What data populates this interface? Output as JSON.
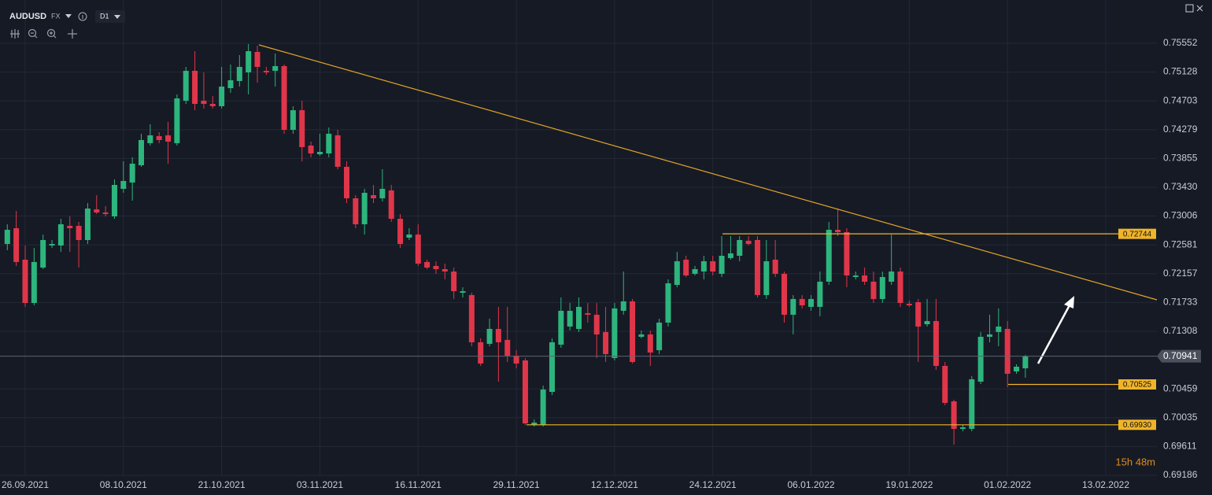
{
  "chart_data": {
    "type": "candlestick",
    "title": "AUDUSD",
    "market": "FX",
    "interval": "D1",
    "timer": "15h 48m",
    "up_color": "#2db57d",
    "down_color": "#e0364a",
    "grid": true,
    "categories": [
      null,
      null,
      "26.09.2021",
      null,
      null,
      null,
      null,
      null,
      null,
      null,
      null,
      null,
      null,
      "08.10.2021",
      null,
      null,
      null,
      null,
      null,
      null,
      null,
      null,
      null,
      null,
      "21.10.2021",
      null,
      null,
      null,
      null,
      null,
      null,
      null,
      null,
      null,
      null,
      "03.11.2021",
      null,
      null,
      null,
      null,
      null,
      null,
      null,
      null,
      null,
      null,
      "16.11.2021",
      null,
      null,
      null,
      null,
      null,
      null,
      null,
      null,
      null,
      null,
      "29.11.2021",
      null,
      null,
      null,
      null,
      null,
      null,
      null,
      null,
      null,
      null,
      "12.12.2021",
      null,
      null,
      null,
      null,
      null,
      null,
      null,
      null,
      null,
      null,
      "24.12.2021",
      null,
      null,
      null,
      null,
      null,
      null,
      null,
      null,
      null,
      null,
      "06.01.2022",
      null,
      null,
      null,
      null,
      null,
      null,
      null,
      null,
      null,
      null,
      "19.01.2022",
      null,
      null,
      null,
      null,
      null,
      null,
      null,
      null,
      null,
      null,
      "01.02.2022",
      null,
      null,
      null,
      null,
      null,
      null,
      null,
      null,
      null,
      null,
      "13.02.2022"
    ],
    "open": [
      0.72595,
      0.72827,
      0.72363,
      0.71725,
      0.72247,
      0.72572,
      0.72572,
      0.72862,
      0.72862,
      0.72653,
      0.73105,
      0.73059,
      0.73001,
      0.73407,
      0.735,
      0.73755,
      0.7408,
      0.74184,
      0.74196,
      0.7408,
      0.74706,
      0.75146,
      0.74706,
      0.74659,
      0.74625,
      0.74891,
      0.74996,
      0.75123,
      0.75425,
      0.75146,
      0.75146,
      0.75216,
      0.74277,
      0.74566,
      0.74045,
      0.73917,
      0.73929,
      0.74196,
      0.73732,
      0.73268,
      0.72885,
      0.73314,
      0.73268,
      0.73384,
      0.72966,
      0.72688,
      0.72734,
      0.72329,
      0.72271,
      0.72224,
      0.72189,
      0.71876,
      0.71842,
      0.71146,
      0.71123,
      0.71343,
      0.71181,
      0.70949,
      0.70879,
      0.69928,
      0.69928,
      0.70415,
      0.71111,
      0.71378,
      0.71343,
      0.71575,
      0.71552,
      0.71297,
      0.70914,
      0.7161,
      0.71749,
      0.71227,
      0.71262,
      0.7103,
      0.71436,
      0.71992,
      0.72363,
      0.72155,
      0.72189,
      0.7234,
      0.72155,
      0.72387,
      0.72421,
      0.72642,
      0.72653,
      0.71842,
      0.72363,
      0.72155,
      0.71552,
      0.71784,
      0.71668,
      0.71668,
      0.72039,
      0.72804,
      0.72769,
      0.72108,
      0.72131,
      0.72039,
      0.71784,
      0.72039,
      0.72189,
      0.71714,
      0.71737,
      0.71412,
      0.71459,
      0.70798,
      0.70276,
      0.6987,
      0.6987,
      0.70566,
      0.71227,
      0.71297,
      0.71343,
      0.70717,
      0.70763,
      null,
      null,
      null,
      null,
      null,
      null,
      null,
      null,
      null
    ],
    "high": [
      0.72885,
      0.73082,
      0.72572,
      0.72537,
      0.72734,
      0.72653,
      0.72966,
      0.73001,
      0.7292,
      0.73198,
      0.73314,
      0.73152,
      0.73546,
      0.73813,
      0.73871,
      0.74219,
      0.74358,
      0.74242,
      0.74393,
      0.74798,
      0.75204,
      0.75436,
      0.75123,
      0.74775,
      0.75204,
      0.75239,
      0.75378,
      0.75541,
      0.75517,
      0.75204,
      0.75401,
      0.75239,
      0.74625,
      0.74706,
      0.74103,
      0.74219,
      0.74311,
      0.74277,
      0.73813,
      0.73314,
      0.73407,
      0.73465,
      0.73697,
      0.73465,
      0.73036,
      0.72827,
      0.72885,
      0.72363,
      0.7234,
      0.72305,
      0.72247,
      0.71957,
      0.71876,
      0.71204,
      0.71494,
      0.71668,
      0.71668,
      0.7103,
      0.70914,
      0.70009,
      0.70508,
      0.71204,
      0.71807,
      0.71725,
      0.71807,
      0.71725,
      0.71725,
      0.71668,
      0.71725,
      0.72189,
      0.71784,
      0.7132,
      0.7132,
      0.71494,
      0.72073,
      0.72479,
      0.72421,
      0.72271,
      0.72421,
      0.72421,
      0.72711,
      0.72711,
      0.72711,
      0.72711,
      0.72711,
      0.72653,
      0.72653,
      0.72189,
      0.71842,
      0.71842,
      0.71842,
      0.72189,
      0.7292,
      0.73117,
      0.72827,
      0.72189,
      0.72247,
      0.72189,
      0.72189,
      0.72734,
      0.72247,
      0.7176,
      0.71784,
      0.71784,
      0.71784,
      0.70856,
      0.70299,
      0.69928,
      0.70647,
      0.71297,
      0.71552,
      0.71645,
      0.71459,
      0.70821,
      0.7096,
      null,
      null,
      null,
      null,
      null,
      null,
      null,
      null,
      null
    ],
    "low": [
      0.72503,
      0.72271,
      0.71668,
      0.71691,
      0.72224,
      0.72537,
      0.72479,
      0.72479,
      0.72247,
      0.72595,
      0.73036,
      0.73001,
      0.72966,
      0.73349,
      0.73233,
      0.73732,
      0.74045,
      0.7408,
      0.73778,
      0.74045,
      0.74659,
      0.74566,
      0.7459,
      0.7459,
      0.7459,
      0.74822,
      0.74914,
      0.74798,
      0.74972,
      0.75088,
      0.74914,
      0.74219,
      0.74219,
      0.73813,
      0.73871,
      0.73894,
      0.73871,
      0.73697,
      0.73198,
      0.72827,
      0.72734,
      0.73198,
      0.73221,
      0.7292,
      0.72537,
      0.72653,
      0.72271,
      0.72224,
      0.72155,
      0.72073,
      0.71784,
      0.71807,
      0.71088,
      0.70798,
      0.71088,
      0.70566,
      0.70856,
      0.70763,
      0.69928,
      0.69905,
      0.69905,
      0.70369,
      0.71065,
      0.7132,
      0.71297,
      0.71436,
      0.70914,
      0.70856,
      0.70879,
      0.71552,
      0.70833,
      0.71204,
      0.70798,
      0.70972,
      0.71378,
      0.71957,
      0.72108,
      0.72131,
      0.72073,
      0.72131,
      0.72108,
      0.72363,
      0.7234,
      0.72572,
      0.71807,
      0.71784,
      0.72108,
      0.71436,
      0.71262,
      0.71645,
      0.7161,
      0.71529,
      0.71992,
      0.72711,
      0.71957,
      0.72073,
      0.71992,
      0.71725,
      0.71725,
      0.71992,
      0.71668,
      0.71668,
      0.70856,
      0.71378,
      0.7074,
      0.70218,
      0.69638,
      0.69835,
      0.69835,
      0.70531,
      0.71146,
      0.71088,
      0.70485,
      0.70682,
      0.70624,
      null,
      null,
      null,
      null,
      null,
      null,
      null,
      null,
      null
    ],
    "close": [
      0.72804,
      0.72329,
      0.71725,
      0.72329,
      0.72653,
      0.72595,
      0.72885,
      0.72827,
      0.72653,
      0.73117,
      0.73059,
      0.73036,
      0.73465,
      0.73523,
      0.73778,
      0.74126,
      0.74196,
      0.74126,
      0.74103,
      0.7474,
      0.75146,
      0.74659,
      0.74659,
      0.74625,
      0.74914,
      0.75007,
      0.75204,
      0.75436,
      0.75204,
      0.75123,
      0.75216,
      0.74277,
      0.74566,
      0.74022,
      0.73929,
      0.73952,
      0.74219,
      0.73732,
      0.73268,
      0.72885,
      0.73349,
      0.73268,
      0.73407,
      0.72966,
      0.72595,
      0.72734,
      0.72305,
      0.72247,
      0.72224,
      0.72189,
      0.71899,
      0.71899,
      0.71146,
      0.70833,
      0.71343,
      0.71146,
      0.70949,
      0.70833,
      0.69951,
      0.69963,
      0.7045,
      0.71146,
      0.7161,
      0.7161,
      0.71668,
      0.71552,
      0.71262,
      0.70972,
      0.71645,
      0.71749,
      0.70856,
      0.71262,
      0.70995,
      0.71436,
      0.72015,
      0.7234,
      0.72131,
      0.72224,
      0.7234,
      0.72189,
      0.72421,
      0.72456,
      0.72653,
      0.72595,
      0.71842,
      0.7234,
      0.72155,
      0.71552,
      0.71784,
      0.71691,
      0.71784,
      0.72039,
      0.72804,
      0.72769,
      0.72131,
      0.72131,
      0.72039,
      0.71784,
      0.72108,
      0.72189,
      0.71725,
      0.71691,
      0.71378,
      0.71459,
      0.70798,
      0.70253,
      0.6987,
      0.69893,
      0.70601,
      0.71227,
      0.71262,
      0.71378,
      0.70682,
      0.70786,
      0.70941,
      null,
      null,
      null,
      null,
      null,
      null,
      null,
      null,
      null
    ],
    "ylim": [
      0.69174,
      0.7619
    ],
    "yticks": [
      0.75552,
      0.75128,
      0.74703,
      0.74279,
      0.73855,
      {
        "value": 0.7343,
        "label": "0.73430"
      },
      0.73006,
      0.72581,
      0.72157,
      0.71733,
      0.71308,
      0.70459,
      0.70035,
      0.69611,
      0.69186
    ],
    "last_price": 0.70941,
    "levels": [
      0.72744,
      0.70525,
      {
        "value": 0.6993,
        "label": "0.69930"
      }
    ],
    "level_color": "#f0b429"
  }
}
